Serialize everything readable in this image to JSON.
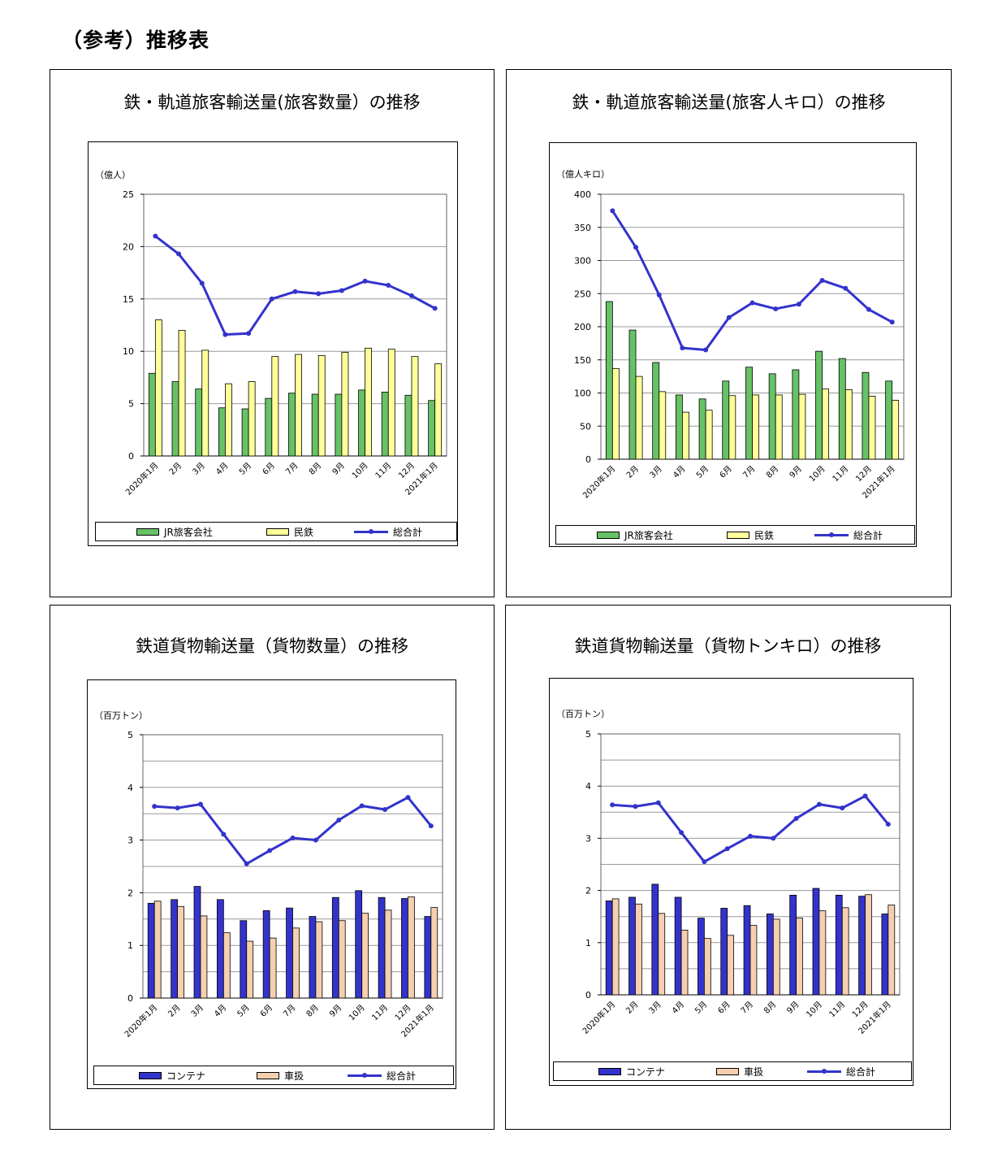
{
  "page_title": "（参考）推移表",
  "colors": {
    "jr": "#66c266",
    "mintetsu": "#ffff99",
    "total": "#3333cc",
    "container": "#3333cc",
    "shaatsukai": "#f5cfb0"
  },
  "charts": [
    {
      "title": "鉄・軌道旅客輸送量(旅客数量）の推移",
      "unit": "（億人）",
      "legend": [
        "JR旅客会社",
        "民鉄",
        "総合計"
      ]
    },
    {
      "title": "鉄・軌道旅客輸送量(旅客人キロ）の推移",
      "unit": "（億人キロ）",
      "legend": [
        "JR旅客会社",
        "民鉄",
        "総合計"
      ]
    },
    {
      "title": "鉄道貨物輸送量（貨物数量）の推移",
      "unit": "（百万トン）",
      "legend": [
        "コンテナ",
        "車扱",
        "総合計"
      ]
    },
    {
      "title": "鉄道貨物輸送量（貨物トンキロ）の推移",
      "unit": "（百万トン）",
      "legend": [
        "コンテナ",
        "車扱",
        "総合計"
      ]
    }
  ],
  "chart_data": [
    {
      "type": "bar",
      "title": "鉄・軌道旅客輸送量(旅客数量）の推移",
      "ylabel": "（億人）",
      "categories": [
        "2020年1月",
        "2月",
        "3月",
        "4月",
        "5月",
        "6月",
        "7月",
        "8月",
        "9月",
        "10月",
        "11月",
        "12月",
        "2021年1月"
      ],
      "ylim": [
        0,
        25
      ],
      "yticks": [
        0,
        5,
        10,
        15,
        20,
        25
      ],
      "gridlines": [
        5,
        10,
        15,
        20
      ],
      "series": [
        {
          "name": "JR旅客会社",
          "kind": "bar",
          "values": [
            7.9,
            7.1,
            6.4,
            4.6,
            4.5,
            5.5,
            6.0,
            5.9,
            5.9,
            6.3,
            6.1,
            5.8,
            5.3
          ]
        },
        {
          "name": "民鉄",
          "kind": "bar",
          "values": [
            13.0,
            12.0,
            10.1,
            6.9,
            7.1,
            9.5,
            9.7,
            9.6,
            9.9,
            10.3,
            10.2,
            9.5,
            8.8
          ]
        },
        {
          "name": "総合計",
          "kind": "line",
          "values": [
            21.0,
            19.3,
            16.5,
            11.6,
            11.7,
            15.0,
            15.7,
            15.5,
            15.8,
            16.7,
            16.3,
            15.3,
            14.1
          ]
        }
      ],
      "legend_position": "bottom"
    },
    {
      "type": "bar",
      "title": "鉄・軌道旅客輸送量(旅客人キロ）の推移",
      "ylabel": "（億人キロ）",
      "categories": [
        "2020年1月",
        "2月",
        "3月",
        "4月",
        "5月",
        "6月",
        "7月",
        "8月",
        "9月",
        "10月",
        "11月",
        "12月",
        "2021年1月"
      ],
      "ylim": [
        0,
        400
      ],
      "yticks": [
        0,
        50,
        100,
        150,
        200,
        250,
        300,
        350,
        400
      ],
      "gridlines": [
        50,
        100,
        150,
        200,
        250,
        300,
        350
      ],
      "series": [
        {
          "name": "JR旅客会社",
          "kind": "bar",
          "values": [
            238,
            195,
            146,
            97,
            91,
            118,
            139,
            129,
            135,
            163,
            152,
            131,
            118
          ]
        },
        {
          "name": "民鉄",
          "kind": "bar",
          "values": [
            137,
            125,
            102,
            71,
            74,
            96,
            97,
            97,
            98,
            106,
            105,
            95,
            89
          ]
        },
        {
          "name": "総合計",
          "kind": "line",
          "values": [
            375,
            320,
            248,
            168,
            165,
            214,
            236,
            227,
            234,
            270,
            258,
            226,
            207
          ]
        }
      ],
      "legend_position": "bottom"
    },
    {
      "type": "bar",
      "title": "鉄道貨物輸送量（貨物数量）の推移",
      "ylabel": "（百万トン）",
      "categories": [
        "2020年1月",
        "2月",
        "3月",
        "4月",
        "5月",
        "6月",
        "7月",
        "8月",
        "9月",
        "10月",
        "11月",
        "12月",
        "2021年1月"
      ],
      "ylim": [
        0,
        5
      ],
      "yticks": [
        0,
        1,
        2,
        3,
        4,
        5
      ],
      "gridlines": [
        0.5,
        1,
        1.5,
        2,
        2.5,
        3,
        3.5,
        4,
        4.5
      ],
      "series": [
        {
          "name": "コンテナ",
          "kind": "bar",
          "values": [
            1.8,
            1.87,
            2.12,
            1.87,
            1.47,
            1.66,
            1.71,
            1.55,
            1.91,
            2.04,
            1.91,
            1.89,
            1.55
          ]
        },
        {
          "name": "車扱",
          "kind": "bar",
          "values": [
            1.84,
            1.74,
            1.56,
            1.24,
            1.08,
            1.14,
            1.33,
            1.45,
            1.47,
            1.61,
            1.67,
            1.92,
            1.72
          ]
        },
        {
          "name": "総合計",
          "kind": "line",
          "values": [
            3.64,
            3.61,
            3.68,
            3.11,
            2.55,
            2.8,
            3.04,
            3.0,
            3.38,
            3.65,
            3.58,
            3.81,
            3.27
          ]
        }
      ],
      "legend_position": "bottom"
    },
    {
      "type": "bar",
      "title": "鉄道貨物輸送量（貨物トンキロ）の推移",
      "ylabel": "（百万トン）",
      "categories": [
        "2020年1月",
        "2月",
        "3月",
        "4月",
        "5月",
        "6月",
        "7月",
        "8月",
        "9月",
        "10月",
        "11月",
        "12月",
        "2021年1月"
      ],
      "ylim": [
        0,
        5
      ],
      "yticks": [
        0,
        1,
        2,
        3,
        4,
        5
      ],
      "gridlines": [
        0.5,
        1,
        1.5,
        2,
        2.5,
        3,
        3.5,
        4,
        4.5
      ],
      "series": [
        {
          "name": "コンテナ",
          "kind": "bar",
          "values": [
            1.8,
            1.87,
            2.12,
            1.87,
            1.47,
            1.66,
            1.71,
            1.55,
            1.91,
            2.04,
            1.91,
            1.89,
            1.55
          ]
        },
        {
          "name": "車扱",
          "kind": "bar",
          "values": [
            1.84,
            1.74,
            1.56,
            1.24,
            1.08,
            1.14,
            1.33,
            1.45,
            1.47,
            1.61,
            1.67,
            1.92,
            1.72
          ]
        },
        {
          "name": "総合計",
          "kind": "line",
          "values": [
            3.64,
            3.61,
            3.68,
            3.11,
            2.55,
            2.8,
            3.04,
            3.0,
            3.38,
            3.65,
            3.58,
            3.81,
            3.27
          ]
        }
      ],
      "legend_position": "bottom"
    }
  ]
}
